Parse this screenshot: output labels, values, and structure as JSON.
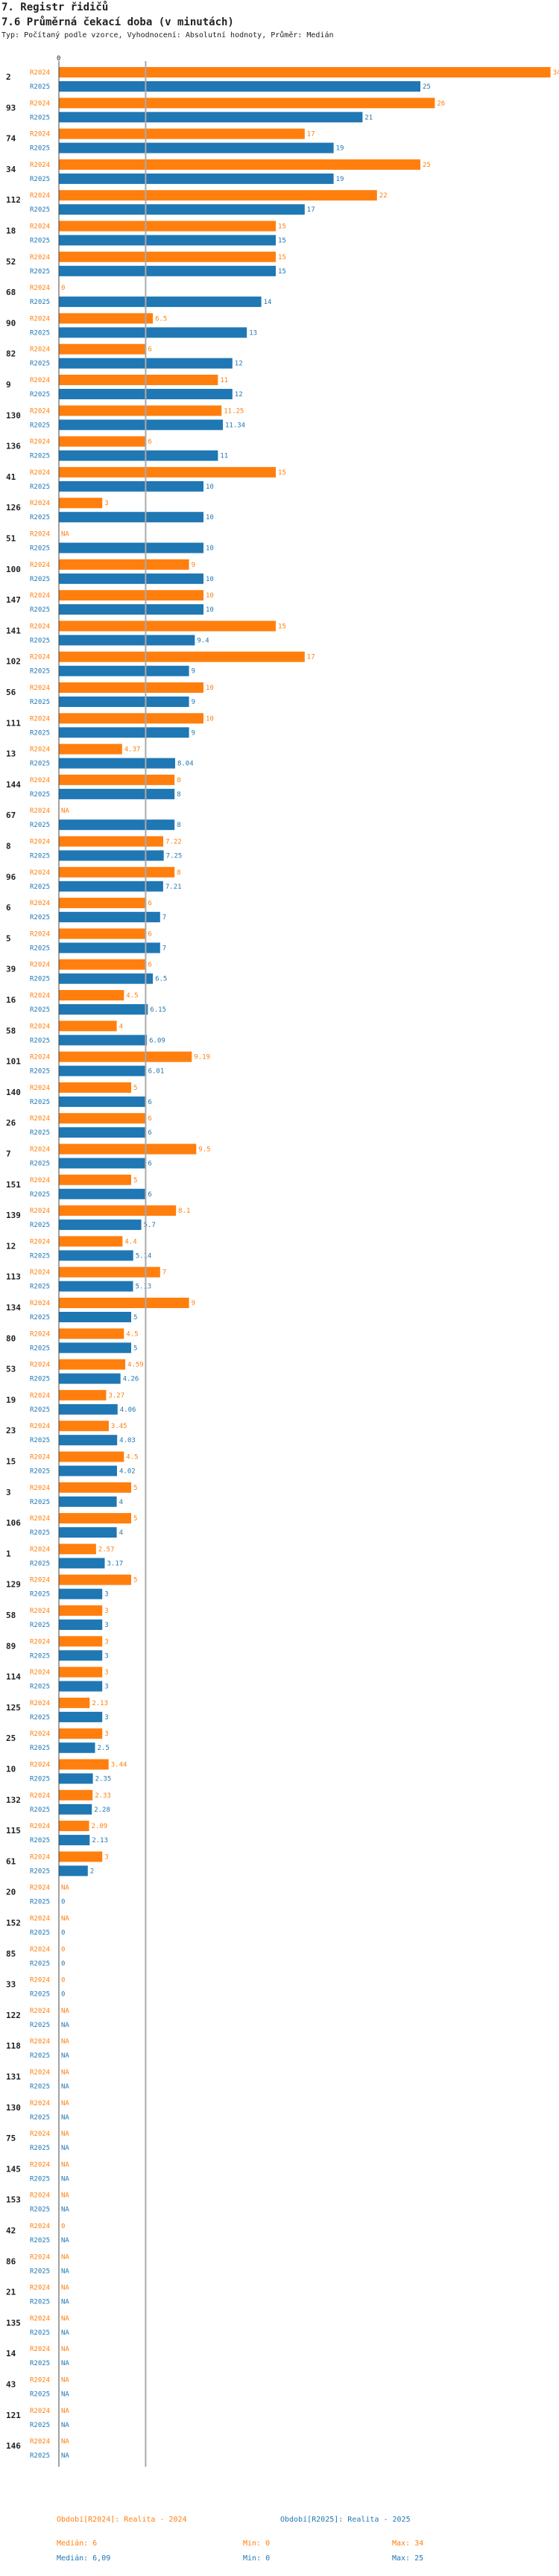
{
  "header": {
    "title": "7. Registr řidičů",
    "subtitle": "7.6 Průměrná čekací doba (v minutách)",
    "info": "Typ: Počítaný podle vzorce, Vyhodnocení: Absolutní hodnoty, Průměr: Medián"
  },
  "chart_data": {
    "type": "bar",
    "orientation": "horizontal",
    "axis_tick": "0",
    "series_labels": [
      "R2024",
      "R2025"
    ],
    "colors": {
      "R2024": "#ff7f0e",
      "R2025": "#1f77b4",
      "median_line": "#aaaaaa"
    },
    "xlim": [
      0,
      34
    ],
    "categories": [
      "2",
      "93",
      "74",
      "34",
      "112",
      "18",
      "52",
      "68",
      "90",
      "82",
      "9",
      "130",
      "136",
      "41",
      "126",
      "51",
      "100",
      "147",
      "141",
      "102",
      "56",
      "111",
      "13",
      "144",
      "67",
      "8",
      "96",
      "6",
      "5",
      "39",
      "16",
      "58",
      "101",
      "140",
      "26",
      "7",
      "151",
      "139",
      "12",
      "113",
      "134",
      "80",
      "53",
      "19",
      "23",
      "15",
      "3",
      "106",
      "1",
      "129",
      "58",
      "89",
      "114",
      "125",
      "25",
      "10",
      "132",
      "115",
      "61",
      "20",
      "152",
      "85",
      "33",
      "122",
      "118",
      "131",
      "130",
      "75",
      "145",
      "153",
      "42",
      "86",
      "21",
      "135",
      "14",
      "43",
      "121",
      "146"
    ],
    "r2024": [
      34,
      "26",
      17,
      "25",
      22,
      15,
      15,
      0,
      6.5,
      6,
      11,
      "11.25",
      6,
      15,
      3,
      "NA",
      9,
      10,
      15,
      17,
      10,
      10,
      "4.37",
      8,
      "NA",
      "7.22",
      8,
      6,
      "6",
      6,
      4.5,
      4,
      "9.19",
      5,
      6,
      9.5,
      5,
      "8.1",
      4.4,
      7,
      9,
      "4.5",
      4.59,
      "3.27",
      3.45,
      4.5,
      5,
      5,
      2.57,
      5,
      3,
      3,
      3,
      2.13,
      3,
      3.44,
      2.33,
      2.09,
      3,
      "NA",
      "NA",
      0,
      0,
      "NA",
      "NA",
      "NA",
      "NA",
      "NA",
      "NA",
      "NA",
      0,
      "NA",
      "NA",
      "NA",
      "NA",
      "NA",
      "NA",
      "NA"
    ],
    "r2025": [
      25,
      21,
      19,
      19,
      17,
      15,
      15,
      14,
      13,
      12,
      12,
      11.34,
      11,
      10,
      10,
      10,
      10,
      10,
      9.4,
      9,
      9,
      9,
      8.04,
      8,
      8,
      7.25,
      7.21,
      7,
      7,
      6.5,
      6.15,
      6.09,
      6.01,
      6,
      6,
      6,
      6,
      5.7,
      5.14,
      5.13,
      5,
      5,
      4.26,
      4.06,
      4.03,
      4.02,
      4,
      4,
      3.17,
      3,
      3,
      3,
      3,
      3,
      2.5,
      2.35,
      2.28,
      2.13,
      2,
      0,
      0,
      0,
      0,
      "NA",
      "NA",
      "NA",
      "NA",
      "NA",
      "NA",
      "NA",
      "NA",
      "NA",
      "NA",
      "NA",
      "NA",
      "NA",
      "NA",
      "NA"
    ],
    "legend": {
      "r2024": {
        "label": "Období[R2024]: Realita - 2024",
        "median": "Medián: 6",
        "min": "Min: 0",
        "max": "Max: 34"
      },
      "r2025": {
        "label": "Období[R2025]: Realita - 2025",
        "median": "Medián: 6,09",
        "min": "Min: 0",
        "max": "Max: 25"
      }
    }
  }
}
